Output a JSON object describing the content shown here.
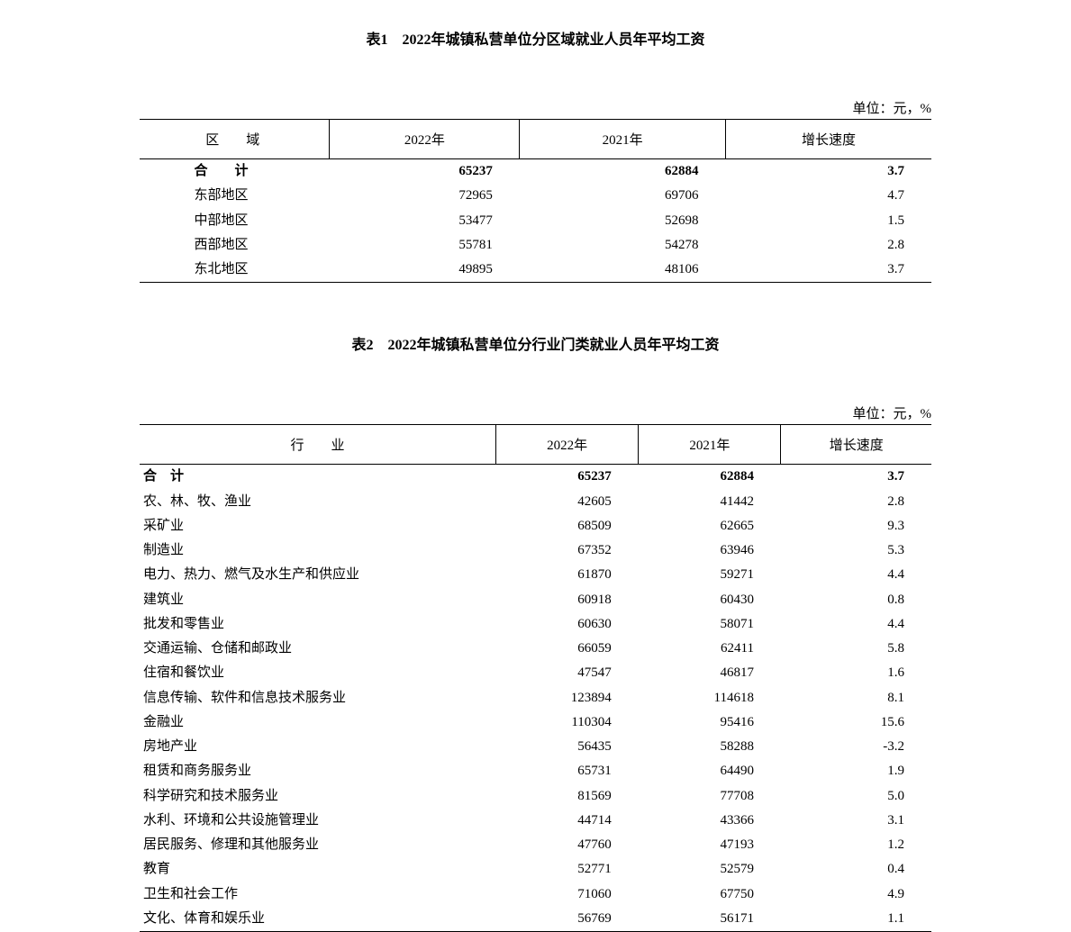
{
  "table1": {
    "title": "表1　2022年城镇私营单位分区域就业人员年平均工资",
    "unit": "单位：元，%",
    "columns": [
      "区　　域",
      "2022年",
      "2021年",
      "增长速度"
    ],
    "total": {
      "label": "合　　计",
      "y2022": "65237",
      "y2021": "62884",
      "growth": "3.7"
    },
    "rows": [
      {
        "label": "东部地区",
        "y2022": "72965",
        "y2021": "69706",
        "growth": "4.7"
      },
      {
        "label": "中部地区",
        "y2022": "53477",
        "y2021": "52698",
        "growth": "1.5"
      },
      {
        "label": "西部地区",
        "y2022": "55781",
        "y2021": "54278",
        "growth": "2.8"
      },
      {
        "label": "东北地区",
        "y2022": "49895",
        "y2021": "48106",
        "growth": "3.7"
      }
    ]
  },
  "table2": {
    "title": "表2　2022年城镇私营单位分行业门类就业人员年平均工资",
    "unit": "单位：元，%",
    "columns": [
      "行　　业",
      "2022年",
      "2021年",
      "增长速度"
    ],
    "total": {
      "label": "合　计",
      "y2022": "65237",
      "y2021": "62884",
      "growth": "3.7"
    },
    "rows": [
      {
        "label": "农、林、牧、渔业",
        "y2022": "42605",
        "y2021": "41442",
        "growth": "2.8"
      },
      {
        "label": "采矿业",
        "y2022": "68509",
        "y2021": "62665",
        "growth": "9.3"
      },
      {
        "label": "制造业",
        "y2022": "67352",
        "y2021": "63946",
        "growth": "5.3"
      },
      {
        "label": "电力、热力、燃气及水生产和供应业",
        "y2022": "61870",
        "y2021": "59271",
        "growth": "4.4"
      },
      {
        "label": "建筑业",
        "y2022": "60918",
        "y2021": "60430",
        "growth": "0.8"
      },
      {
        "label": "批发和零售业",
        "y2022": "60630",
        "y2021": "58071",
        "growth": "4.4"
      },
      {
        "label": "交通运输、仓储和邮政业",
        "y2022": "66059",
        "y2021": "62411",
        "growth": "5.8"
      },
      {
        "label": "住宿和餐饮业",
        "y2022": "47547",
        "y2021": "46817",
        "growth": "1.6"
      },
      {
        "label": "信息传输、软件和信息技术服务业",
        "y2022": "123894",
        "y2021": "114618",
        "growth": "8.1"
      },
      {
        "label": "金融业",
        "y2022": "110304",
        "y2021": "95416",
        "growth": "15.6"
      },
      {
        "label": "房地产业",
        "y2022": "56435",
        "y2021": "58288",
        "growth": "-3.2"
      },
      {
        "label": "租赁和商务服务业",
        "y2022": "65731",
        "y2021": "64490",
        "growth": "1.9"
      },
      {
        "label": "科学研究和技术服务业",
        "y2022": "81569",
        "y2021": "77708",
        "growth": "5.0"
      },
      {
        "label": "水利、环境和公共设施管理业",
        "y2022": "44714",
        "y2021": "43366",
        "growth": "3.1"
      },
      {
        "label": "居民服务、修理和其他服务业",
        "y2022": "47760",
        "y2021": "47193",
        "growth": "1.2"
      },
      {
        "label": "教育",
        "y2022": "52771",
        "y2021": "52579",
        "growth": "0.4"
      },
      {
        "label": "卫生和社会工作",
        "y2022": "71060",
        "y2021": "67750",
        "growth": "4.9"
      },
      {
        "label": "文化、体育和娱乐业",
        "y2022": "56769",
        "y2021": "56171",
        "growth": "1.1"
      }
    ]
  },
  "style": {
    "text_color": "#000000",
    "background_color": "#ffffff",
    "border_color": "#000000",
    "title_fontsize": 16,
    "body_fontsize": 15,
    "font_family": "SimSun"
  }
}
